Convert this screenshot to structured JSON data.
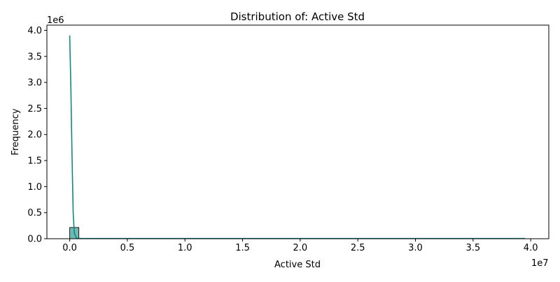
{
  "chart_data": {
    "type": "histogram",
    "title": "Distribution of: Active Std",
    "xlabel": "Active Std",
    "ylabel": "Frequency",
    "x_multiplier_label": "1e7",
    "y_multiplier_label": "1e6",
    "xlim": [
      -1980000,
      41570000
    ],
    "ylim": [
      0,
      4100000
    ],
    "x_ticks": [
      {
        "value": 0,
        "label": "0.0"
      },
      {
        "value": 5000000,
        "label": "0.5"
      },
      {
        "value": 10000000,
        "label": "1.0"
      },
      {
        "value": 15000000,
        "label": "1.5"
      },
      {
        "value": 20000000,
        "label": "2.0"
      },
      {
        "value": 25000000,
        "label": "2.5"
      },
      {
        "value": 30000000,
        "label": "3.0"
      },
      {
        "value": 35000000,
        "label": "3.5"
      },
      {
        "value": 40000000,
        "label": "4.0"
      }
    ],
    "y_ticks": [
      {
        "value": 0,
        "label": "0.0"
      },
      {
        "value": 500000,
        "label": "0.5"
      },
      {
        "value": 1000000,
        "label": "1.0"
      },
      {
        "value": 1500000,
        "label": "1.5"
      },
      {
        "value": 2000000,
        "label": "2.0"
      },
      {
        "value": 2500000,
        "label": "2.5"
      },
      {
        "value": 3000000,
        "label": "3.0"
      },
      {
        "value": 3500000,
        "label": "3.5"
      },
      {
        "value": 4000000,
        "label": "4.0"
      }
    ],
    "bins": [
      {
        "x0": 0,
        "x1": 790000,
        "count": 215000
      }
    ],
    "kde": {
      "x": [
        0,
        100000,
        200000,
        300000,
        400000,
        600000,
        1000000,
        5000000,
        10000000,
        20000000,
        30000000,
        39500000
      ],
      "y": [
        3900000,
        2900000,
        1600000,
        500000,
        100000,
        10000,
        5000,
        5000,
        5000,
        5000,
        5000,
        5000
      ]
    },
    "colors": {
      "bar_fill": "#71b9b4",
      "bar_edge": "#1a1a1a",
      "kde_line": "#0e8a82"
    },
    "grid": false
  }
}
